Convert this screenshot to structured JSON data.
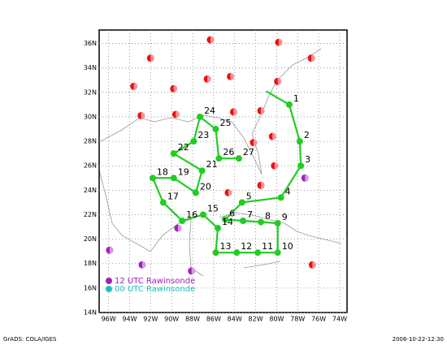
{
  "map": {
    "lonlim": [
      96.9,
      73.3
    ],
    "latlim": [
      14,
      37.1
    ],
    "lon_ticks": [
      {
        "value": 96,
        "label": "96W"
      },
      {
        "value": 94,
        "label": "94W"
      },
      {
        "value": 92,
        "label": "92W"
      },
      {
        "value": 90,
        "label": "90W"
      },
      {
        "value": 88,
        "label": "88W"
      },
      {
        "value": 86,
        "label": "86W"
      },
      {
        "value": 84,
        "label": "84W"
      },
      {
        "value": 82,
        "label": "82W"
      },
      {
        "value": 80,
        "label": "80W"
      },
      {
        "value": 78,
        "label": "78W"
      },
      {
        "value": 76,
        "label": "76W"
      },
      {
        "value": 74,
        "label": "74W"
      }
    ],
    "lat_ticks": [
      {
        "value": 14,
        "label": "14N"
      },
      {
        "value": 16,
        "label": "16N"
      },
      {
        "value": 18,
        "label": "18N"
      },
      {
        "value": 20,
        "label": "20N"
      },
      {
        "value": 22,
        "label": "22N"
      },
      {
        "value": 24,
        "label": "24N"
      },
      {
        "value": 26,
        "label": "26N"
      },
      {
        "value": 28,
        "label": "28N"
      },
      {
        "value": 30,
        "label": "30N"
      },
      {
        "value": 32,
        "label": "32N"
      },
      {
        "value": 34,
        "label": "34N"
      },
      {
        "value": 36,
        "label": "36N"
      }
    ],
    "track": {
      "color": "#22cc22",
      "points": [
        {
          "label": null,
          "lon": 81.0,
          "lat": 32.1
        },
        {
          "label": "1",
          "lon": 78.8,
          "lat": 31.0
        },
        {
          "label": "2",
          "lon": 77.8,
          "lat": 28.0
        },
        {
          "label": "3",
          "lon": 77.7,
          "lat": 26.0
        },
        {
          "label": "4",
          "lon": 79.6,
          "lat": 23.4
        },
        {
          "label": "5",
          "lon": 83.3,
          "lat": 23.0
        },
        {
          "label": "6",
          "lon": 84.9,
          "lat": 21.6
        },
        {
          "label": "7",
          "lon": 83.2,
          "lat": 21.5
        },
        {
          "label": "8",
          "lon": 81.5,
          "lat": 21.4
        },
        {
          "label": "9",
          "lon": 79.9,
          "lat": 21.3
        },
        {
          "label": "10",
          "lon": 79.9,
          "lat": 18.9
        },
        {
          "label": "11",
          "lon": 81.8,
          "lat": 18.9
        },
        {
          "label": "12",
          "lon": 83.8,
          "lat": 18.9
        },
        {
          "label": "13",
          "lon": 85.8,
          "lat": 18.9
        },
        {
          "label": "14",
          "lon": 85.6,
          "lat": 20.9
        },
        {
          "label": "15",
          "lon": 87.0,
          "lat": 22.0
        },
        {
          "label": "16",
          "lon": 89.0,
          "lat": 21.5
        },
        {
          "label": "17",
          "lon": 90.8,
          "lat": 23.0
        },
        {
          "label": "18",
          "lon": 91.8,
          "lat": 25.0
        },
        {
          "label": "19",
          "lon": 89.8,
          "lat": 25.0
        },
        {
          "label": "20",
          "lon": 87.7,
          "lat": 23.8
        },
        {
          "label": "21",
          "lon": 87.1,
          "lat": 25.6
        },
        {
          "label": "22",
          "lon": 89.8,
          "lat": 27.0
        },
        {
          "label": "23",
          "lon": 87.9,
          "lat": 28.0
        },
        {
          "label": "24",
          "lon": 87.3,
          "lat": 30.0
        },
        {
          "label": "25",
          "lon": 85.8,
          "lat": 29.0
        },
        {
          "label": "26",
          "lon": 85.5,
          "lat": 26.6
        },
        {
          "label": "27",
          "lon": 83.6,
          "lat": 26.6
        }
      ]
    },
    "red_sites": {
      "color": "#ee1111",
      "points": [
        {
          "lon": 86.3,
          "lat": 36.3
        },
        {
          "lon": 79.8,
          "lat": 36.1
        },
        {
          "lon": 92.0,
          "lat": 34.8
        },
        {
          "lon": 76.7,
          "lat": 34.8
        },
        {
          "lon": 86.6,
          "lat": 33.1
        },
        {
          "lon": 84.4,
          "lat": 33.3
        },
        {
          "lon": 93.6,
          "lat": 32.5
        },
        {
          "lon": 89.8,
          "lat": 32.3
        },
        {
          "lon": 79.9,
          "lat": 32.9
        },
        {
          "lon": 92.9,
          "lat": 30.1
        },
        {
          "lon": 89.6,
          "lat": 30.2
        },
        {
          "lon": 84.1,
          "lat": 30.4
        },
        {
          "lon": 81.5,
          "lat": 30.5
        },
        {
          "lon": 80.4,
          "lat": 28.4
        },
        {
          "lon": 82.2,
          "lat": 27.9
        },
        {
          "lon": 80.2,
          "lat": 26.0
        },
        {
          "lon": 81.5,
          "lat": 24.4
        },
        {
          "lon": 84.6,
          "lat": 23.8
        },
        {
          "lon": 76.6,
          "lat": 17.9
        }
      ]
    },
    "rawinsonde_12": {
      "color": "#a020c0",
      "points": [
        {
          "lon": 77.3,
          "lat": 25.0
        },
        {
          "lon": 89.4,
          "lat": 20.9
        },
        {
          "lon": 95.9,
          "lat": 19.1
        },
        {
          "lon": 92.8,
          "lat": 17.9
        },
        {
          "lon": 88.1,
          "lat": 17.4
        }
      ]
    },
    "legend": [
      {
        "label": "12 UTC Rawinsonde",
        "color": "#a020c0"
      },
      {
        "label": "00 UTC Rawinsonde",
        "color": "#20c0c0"
      }
    ]
  },
  "footer": {
    "left": "GrADS: COLA/IGES",
    "right": "2006-10-22-12:30"
  }
}
